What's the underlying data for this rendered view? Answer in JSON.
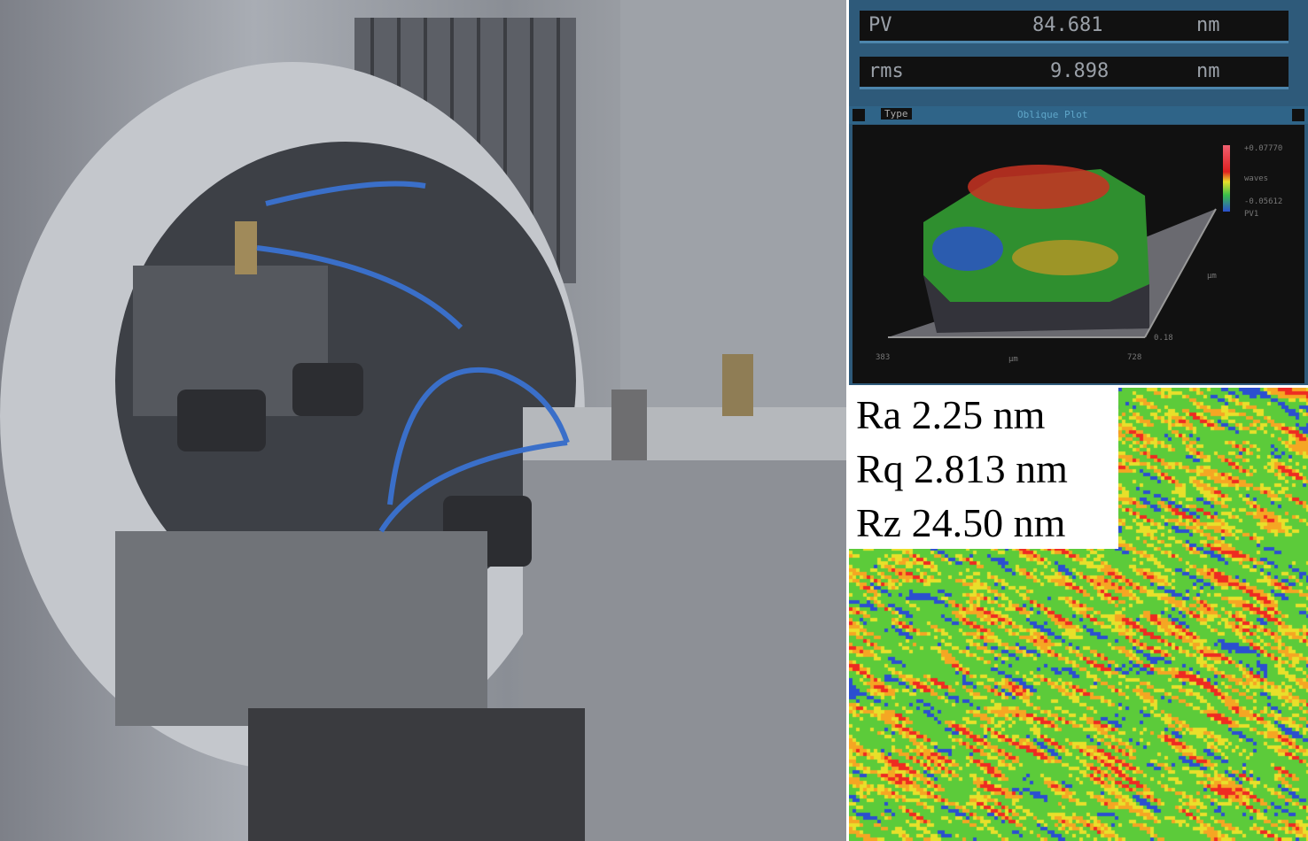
{
  "measurement": {
    "pv": {
      "label": "PV",
      "value": "84.681",
      "unit": "nm"
    },
    "rms": {
      "label": "rms",
      "value": "9.898",
      "unit": "nm"
    }
  },
  "plot": {
    "tab_label": "Type",
    "title": "Oblique Plot",
    "scale_max": "+0.07770",
    "scale_unit": "waves",
    "scale_min": "-0.05612",
    "scale_extra": "PV1",
    "y_unit": "µm",
    "y_tick": "0.18",
    "x_start": "383",
    "x_unit": "µm",
    "x_end": "728"
  },
  "roughness": {
    "ra": "Ra 2.25 nm",
    "rq": "Rq 2.813 nm",
    "rz": "Rz 24.50 nm"
  },
  "colors": {
    "red": "#ee2a22",
    "orange": "#f5a623",
    "yellow": "#e8e02a",
    "green": "#5ccb3a",
    "blue": "#2b4fd0"
  }
}
